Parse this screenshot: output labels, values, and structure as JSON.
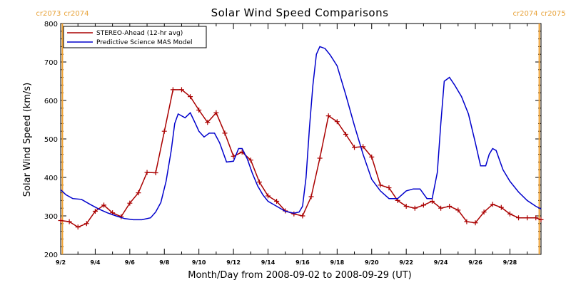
{
  "chart_data": {
    "type": "line",
    "title": "Solar Wind Speed Comparisons",
    "xlabel": "Month/Day from 2008-09-02 to 2008-09-29 (UT)",
    "ylabel": "Solar Wind Speed (km/s)",
    "xlim": [
      0,
      27.8
    ],
    "ylim": [
      200,
      800
    ],
    "grid": false,
    "legend_position": "top-left",
    "y_ticks": [
      200,
      300,
      400,
      500,
      600,
      700,
      800
    ],
    "x_ticks": [
      {
        "day": 0,
        "label": "9/2"
      },
      {
        "day": 2,
        "label": "9/4"
      },
      {
        "day": 4,
        "label": "9/6"
      },
      {
        "day": 6,
        "label": "9/8"
      },
      {
        "day": 8,
        "label": "9/10"
      },
      {
        "day": 10,
        "label": "9/12"
      },
      {
        "day": 12,
        "label": "9/14"
      },
      {
        "day": 14,
        "label": "9/16"
      },
      {
        "day": 16,
        "label": "9/18"
      },
      {
        "day": 18,
        "label": "9/20"
      },
      {
        "day": 20,
        "label": "9/22"
      },
      {
        "day": 22,
        "label": "9/24"
      },
      {
        "day": 24,
        "label": "9/26"
      },
      {
        "day": 26,
        "label": "9/28"
      }
    ],
    "carrington_markers": [
      {
        "day": 0.1,
        "left_label": "cr2073",
        "right_label": "cr2074"
      },
      {
        "day": 27.7,
        "left_label": "cr2074",
        "right_label": "cr2075"
      }
    ],
    "series": [
      {
        "name": "STEREO-Ahead (12-hr avg)",
        "color": "#aa0000",
        "markers": true,
        "x": [
          0.0,
          0.5,
          1.0,
          1.5,
          2.0,
          2.5,
          3.0,
          3.5,
          4.0,
          4.5,
          5.0,
          5.5,
          6.0,
          6.5,
          7.0,
          7.5,
          8.0,
          8.5,
          9.0,
          9.5,
          10.0,
          10.5,
          11.0,
          11.5,
          12.0,
          12.5,
          13.0,
          13.5,
          14.0,
          14.5,
          15.0,
          15.5,
          16.0,
          16.5,
          17.0,
          17.5,
          18.0,
          18.5,
          19.0,
          19.5,
          20.0,
          20.5,
          21.0,
          21.5,
          22.0,
          22.5,
          23.0,
          23.5,
          24.0,
          24.5,
          25.0,
          25.5,
          26.0,
          26.5,
          27.0,
          27.5,
          27.8
        ],
        "values": [
          288,
          285,
          271,
          280,
          312,
          328,
          308,
          298,
          333,
          360,
          413,
          412,
          520,
          628,
          628,
          610,
          575,
          543,
          568,
          515,
          455,
          466,
          445,
          388,
          352,
          338,
          313,
          305,
          300,
          350,
          450,
          560,
          545,
          512,
          478,
          480,
          453,
          380,
          373,
          340,
          325,
          320,
          328,
          338,
          320,
          325,
          315,
          285,
          282,
          310,
          330,
          322,
          305,
          295,
          295,
          295,
          290
        ]
      },
      {
        "name": "Predictive Science MAS Model",
        "color": "#0000cc",
        "markers": false,
        "x": [
          0.0,
          0.3,
          0.7,
          1.2,
          1.7,
          2.2,
          2.7,
          3.2,
          3.7,
          4.2,
          4.7,
          5.2,
          5.5,
          5.8,
          6.1,
          6.4,
          6.6,
          6.8,
          7.0,
          7.2,
          7.5,
          7.8,
          8.0,
          8.3,
          8.6,
          8.9,
          9.2,
          9.6,
          10.0,
          10.3,
          10.5,
          10.8,
          11.1,
          11.4,
          11.7,
          12.0,
          12.5,
          13.0,
          13.5,
          13.8,
          14.0,
          14.2,
          14.4,
          14.6,
          14.8,
          15.0,
          15.3,
          15.6,
          16.0,
          16.5,
          17.0,
          17.5,
          18.0,
          18.5,
          19.0,
          19.5,
          20.0,
          20.4,
          20.8,
          21.2,
          21.5,
          21.8,
          22.0,
          22.2,
          22.5,
          22.8,
          23.2,
          23.6,
          24.0,
          24.3,
          24.6,
          24.8,
          25.0,
          25.2,
          25.6,
          26.0,
          26.5,
          27.0,
          27.5,
          27.8
        ],
        "values": [
          368,
          355,
          345,
          343,
          330,
          318,
          308,
          300,
          293,
          290,
          290,
          295,
          310,
          335,
          390,
          470,
          540,
          565,
          560,
          555,
          568,
          540,
          520,
          505,
          515,
          515,
          490,
          440,
          442,
          475,
          475,
          448,
          410,
          378,
          355,
          338,
          325,
          312,
          307,
          310,
          325,
          400,
          530,
          640,
          720,
          740,
          735,
          718,
          690,
          615,
          535,
          460,
          395,
          365,
          345,
          345,
          365,
          370,
          370,
          345,
          345,
          413,
          540,
          650,
          660,
          640,
          610,
          565,
          490,
          430,
          430,
          460,
          475,
          470,
          420,
          390,
          362,
          340,
          325,
          318
        ]
      }
    ]
  }
}
